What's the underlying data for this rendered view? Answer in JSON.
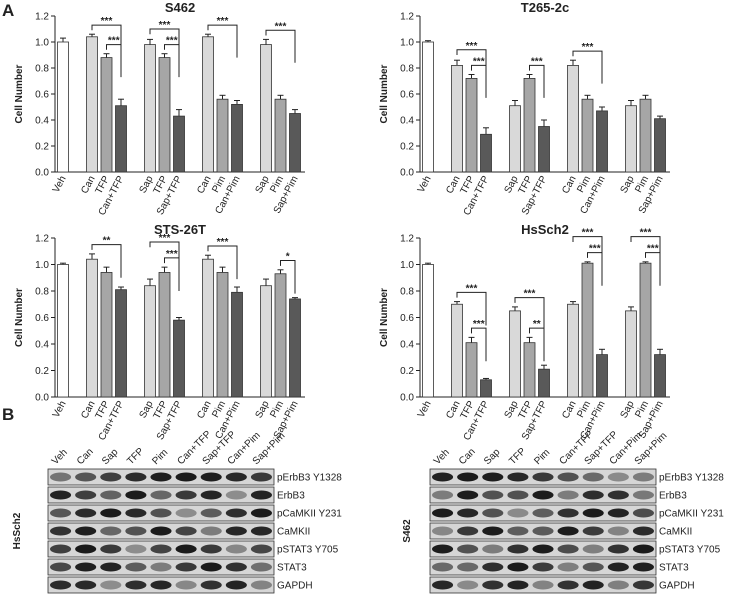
{
  "panel_labels": [
    "A",
    "B"
  ],
  "chart_data": [
    {
      "type": "bar",
      "title": "S462",
      "ylabel": "Cell Number",
      "categories": [
        "Veh",
        "Can",
        "TFP",
        "Can+TFP",
        "Sap",
        "TFP",
        "Sap+TFP",
        "Can",
        "Pim",
        "Can+Pim",
        "Sap",
        "Pim",
        "Sap+Pim"
      ],
      "values": [
        1.0,
        1.04,
        0.88,
        0.51,
        0.98,
        0.88,
        0.43,
        1.04,
        0.56,
        0.52,
        0.98,
        0.56,
        0.45
      ],
      "errors": [
        0.03,
        0.02,
        0.03,
        0.05,
        0.04,
        0.03,
        0.05,
        0.02,
        0.03,
        0.03,
        0.04,
        0.03,
        0.03
      ],
      "colors": [
        "#ffffff",
        "#d9d9d9",
        "#a6a6a6",
        "#595959",
        "#d9d9d9",
        "#a6a6a6",
        "#595959",
        "#d9d9d9",
        "#a6a6a6",
        "#595959",
        "#d9d9d9",
        "#a6a6a6",
        "#595959"
      ],
      "ylim": [
        0,
        1.2
      ],
      "yticks": [
        {
          "value": 0,
          "label": "0.0"
        },
        0.2,
        0.4,
        0.6,
        0.8,
        {
          "value": 1,
          "label": "1.0"
        },
        1.2
      ],
      "annotations": [
        {
          "from": 1,
          "to": 3,
          "label": "***"
        },
        {
          "from": 2,
          "to": 3,
          "label": "***"
        },
        {
          "from": 4,
          "to": 6,
          "label": "***"
        },
        {
          "from": 5,
          "to": 6,
          "label": "***"
        },
        {
          "from": 7,
          "to": 9,
          "label": "***"
        },
        {
          "from": 10,
          "to": 12,
          "label": "***"
        }
      ]
    },
    {
      "type": "bar",
      "title": "T265-2c",
      "ylabel": "Cell Number",
      "categories": [
        "Veh",
        "Can",
        "TFP",
        "Can+TFP",
        "Sap",
        "TFP",
        "Sap+TFP",
        "Can",
        "Pim",
        "Can+Pim",
        "Sap",
        "Pim",
        "Sap+Pim"
      ],
      "values": [
        1.0,
        0.82,
        0.72,
        0.29,
        0.51,
        0.72,
        0.35,
        0.82,
        0.56,
        0.47,
        0.51,
        0.56,
        0.41
      ],
      "errors": [
        0.01,
        0.04,
        0.03,
        0.05,
        0.04,
        0.03,
        0.05,
        0.04,
        0.03,
        0.03,
        0.04,
        0.03,
        0.02
      ],
      "colors": [
        "#ffffff",
        "#d9d9d9",
        "#a6a6a6",
        "#595959",
        "#d9d9d9",
        "#a6a6a6",
        "#595959",
        "#d9d9d9",
        "#a6a6a6",
        "#595959",
        "#d9d9d9",
        "#a6a6a6",
        "#595959"
      ],
      "ylim": [
        0,
        1.2
      ],
      "yticks": [
        {
          "value": 0,
          "label": "0.0"
        },
        0.2,
        0.4,
        0.6,
        0.8,
        {
          "value": 1,
          "label": "1.0"
        },
        1.2
      ],
      "annotations": [
        {
          "from": 1,
          "to": 3,
          "label": "***"
        },
        {
          "from": 2,
          "to": 3,
          "label": "***"
        },
        {
          "from": 5,
          "to": 6,
          "label": "***"
        },
        {
          "from": 7,
          "to": 9,
          "label": "***"
        }
      ]
    },
    {
      "type": "bar",
      "title": "STS-26T",
      "ylabel": "Cell Number",
      "categories": [
        "Veh",
        "Can",
        "TFP",
        "Can+TFP",
        "Sap",
        "TFP",
        "Sap+TFP",
        "Can",
        "Pim",
        "Can+Pim",
        "Sap",
        "Pim",
        "Sap+Pim"
      ],
      "values": [
        1.0,
        1.04,
        0.94,
        0.81,
        0.84,
        0.94,
        0.58,
        1.04,
        0.94,
        0.79,
        0.84,
        0.93,
        0.74
      ],
      "errors": [
        0.01,
        0.04,
        0.04,
        0.02,
        0.05,
        0.04,
        0.02,
        0.03,
        0.04,
        0.04,
        0.05,
        0.03,
        0.01
      ],
      "colors": [
        "#ffffff",
        "#d9d9d9",
        "#a6a6a6",
        "#595959",
        "#d9d9d9",
        "#a6a6a6",
        "#595959",
        "#d9d9d9",
        "#a6a6a6",
        "#595959",
        "#d9d9d9",
        "#a6a6a6",
        "#595959"
      ],
      "ylim": [
        0,
        1.2
      ],
      "yticks": [
        {
          "value": 0,
          "label": "0.0"
        },
        0.2,
        0.4,
        0.6,
        0.8,
        {
          "value": 1,
          "label": "1.0"
        },
        1.2
      ],
      "annotations": [
        {
          "from": 1,
          "to": 3,
          "label": "**"
        },
        {
          "from": 4,
          "to": 6,
          "label": "***"
        },
        {
          "from": 5,
          "to": 6,
          "label": "***"
        },
        {
          "from": 7,
          "to": 9,
          "label": "***"
        },
        {
          "from": 11,
          "to": 12,
          "label": "*"
        }
      ]
    },
    {
      "type": "bar",
      "title": "HsSch2",
      "ylabel": "Cell Number",
      "categories": [
        "Veh",
        "Can",
        "TFP",
        "Can+TFP",
        "Sap",
        "TFP",
        "Sap+TFP",
        "Can",
        "Pim",
        "Can+Pim",
        "Sap",
        "Pim",
        "Sap+Pim"
      ],
      "values": [
        1.0,
        0.7,
        0.41,
        0.13,
        0.65,
        0.41,
        0.21,
        0.7,
        1.01,
        0.32,
        0.65,
        1.01,
        0.32
      ],
      "errors": [
        0.01,
        0.02,
        0.04,
        0.01,
        0.03,
        0.04,
        0.03,
        0.02,
        0.01,
        0.04,
        0.03,
        0.01,
        0.04
      ],
      "colors": [
        "#ffffff",
        "#d9d9d9",
        "#a6a6a6",
        "#595959",
        "#d9d9d9",
        "#a6a6a6",
        "#595959",
        "#d9d9d9",
        "#a6a6a6",
        "#595959",
        "#d9d9d9",
        "#a6a6a6",
        "#595959"
      ],
      "ylim": [
        0,
        1.2
      ],
      "yticks": [
        {
          "value": 0,
          "label": "0.0"
        },
        0.2,
        0.4,
        0.6,
        0.8,
        {
          "value": 1,
          "label": "1.0"
        },
        1.2
      ],
      "annotations": [
        {
          "from": 1,
          "to": 3,
          "label": "***"
        },
        {
          "from": 2,
          "to": 3,
          "label": "***"
        },
        {
          "from": 4,
          "to": 6,
          "label": "***"
        },
        {
          "from": 5,
          "to": 6,
          "label": "**"
        },
        {
          "from": 7,
          "to": 9,
          "label": "***"
        },
        {
          "from": 8,
          "to": 9,
          "label": "***"
        },
        {
          "from": 10,
          "to": 12,
          "label": "***"
        },
        {
          "from": 11,
          "to": 12,
          "label": "***"
        }
      ]
    }
  ],
  "blots": [
    {
      "cell_line": "HsSch2",
      "lanes": [
        "Veh",
        "Can",
        "Sap",
        "TFP",
        "Pim",
        "Can+TFP",
        "Sap+TFP",
        "Can+Pim",
        "Sap+Pim"
      ],
      "bands": [
        "pErbB3 Y1328",
        "ErbB3",
        "pCaMKII Y231",
        "CaMKII",
        "pSTAT3 Y705",
        "STAT3",
        "GAPDH"
      ]
    },
    {
      "cell_line": "S462",
      "lanes": [
        "Veh",
        "Can",
        "Sap",
        "TFP",
        "Pim",
        "Can+TFP",
        "Sap+TFP",
        "Can+Pim",
        "Sap+Pim"
      ],
      "bands": [
        "pErbB3 Y1328",
        "ErbB3",
        "pCaMKII Y231",
        "CaMKII",
        "pSTAT3 Y705",
        "STAT3",
        "GAPDH"
      ]
    }
  ]
}
